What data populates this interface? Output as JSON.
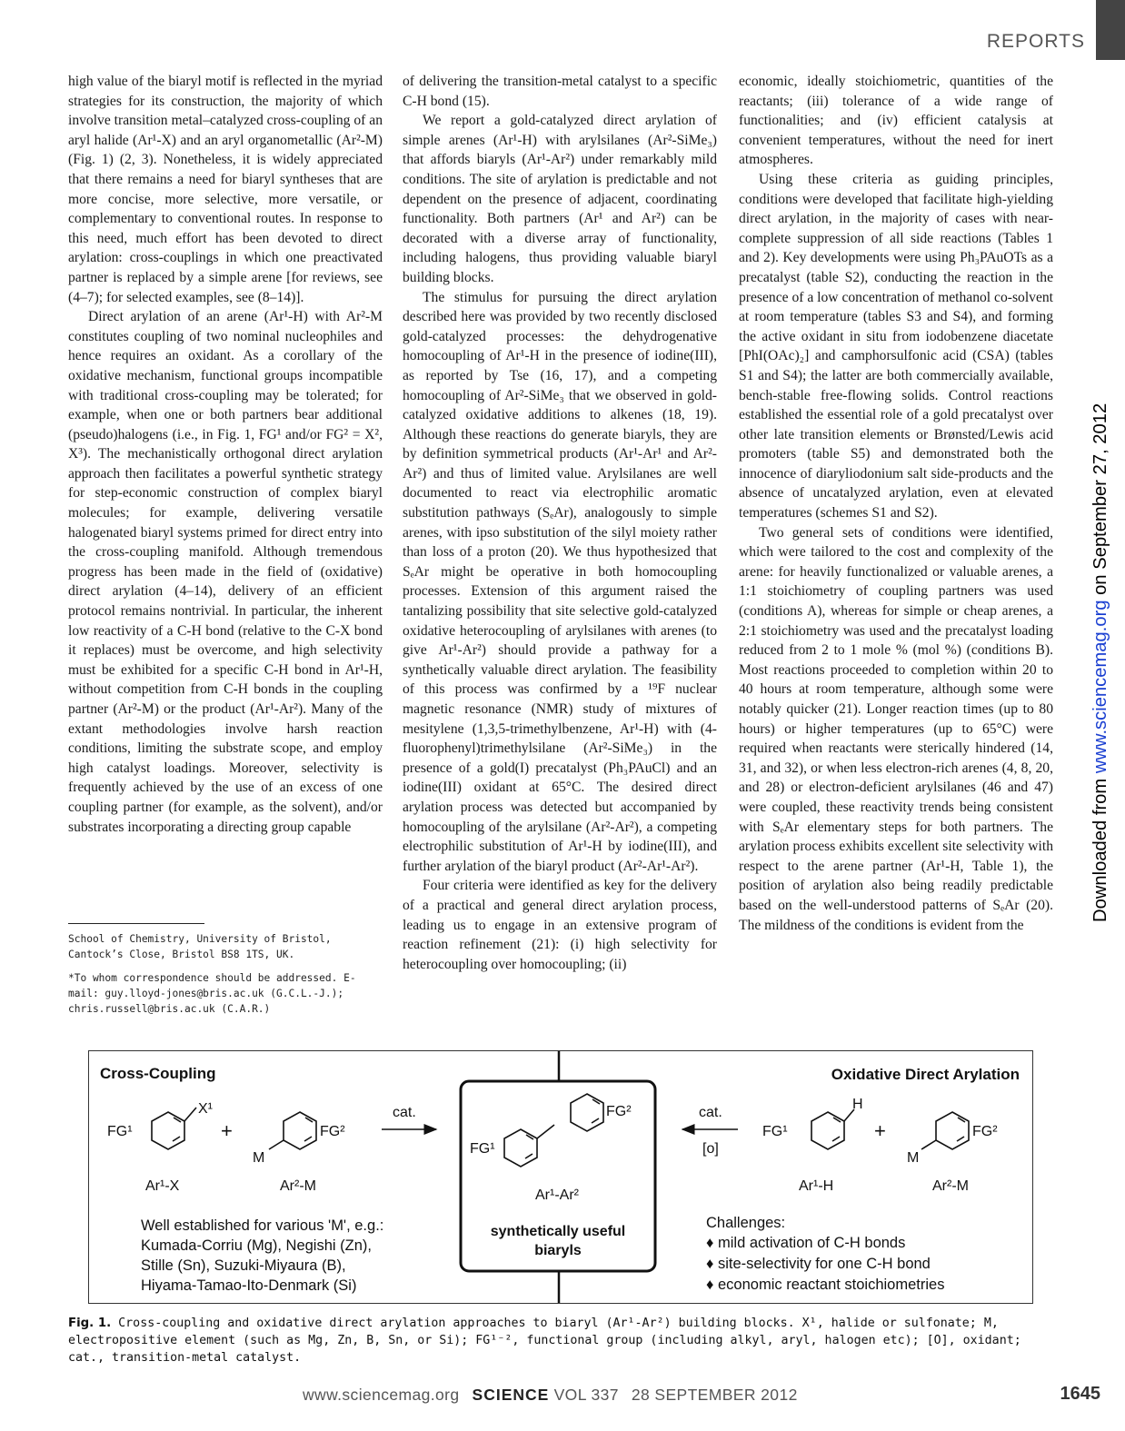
{
  "header": {
    "section": "REPORTS"
  },
  "columns": [
    [
      {
        "indent": false,
        "text": "high value of the biaryl motif is reflected in the myriad strategies for its construction, the majority of which involve transition metal–catalyzed cross-coupling of an aryl halide (Ar¹-X) and an aryl organometallic (Ar²-M) (Fig. 1) (2, 3). Nonetheless, it is widely appreciated that there remains a need for biaryl syntheses that are more concise, more selective, more versatile, or complementary to conventional routes. In response to this need, much effort has been devoted to direct arylation: cross-couplings in which one preactivated partner is replaced by a simple arene [for reviews, see (4–7); for selected examples, see (8–14)]."
      },
      {
        "indent": true,
        "text": "Direct arylation of an arene (Ar¹-H) with Ar²-M constitutes coupling of two nominal nucleophiles and hence requires an oxidant. As a corollary of the oxidative mechanism, functional groups incompatible with traditional cross-coupling may be tolerated; for example, when one or both partners bear additional (pseudo)halogens (i.e., in Fig. 1, FG¹ and/or FG² = X², X³). The mechanistically orthogonal direct arylation approach then facilitates a powerful synthetic strategy for step-economic construction of complex biaryl molecules; for example, delivering versatile halogenated biaryl systems primed for direct entry into the cross-coupling manifold. Although tremendous progress has been made in the field of (oxidative) direct arylation (4–14), delivery of an efficient protocol remains nontrivial. In particular, the inherent low reactivity of a C-H bond (relative to the C-X bond it replaces) must be overcome, and high selectivity must be exhibited for a specific C-H bond in Ar¹-H, without competition from C-H bonds in the coupling partner (Ar²-M) or the product (Ar¹-Ar²). Many of the extant methodologies involve harsh reaction conditions, limiting the substrate scope, and employ high catalyst loadings. Moreover, selectivity is frequently achieved by the use of an excess of one coupling partner (for example, as the solvent), and/or substrates incorporating a directing group capable"
      }
    ],
    [
      {
        "indent": false,
        "text": "of delivering the transition-metal catalyst to a specific C-H bond (15)."
      },
      {
        "indent": true,
        "text": "We report a gold-catalyzed direct arylation of simple arenes (Ar¹-H) with arylsilanes (Ar²-SiMe₃) that affords biaryls (Ar¹-Ar²) under remarkably mild conditions. The site of arylation is predictable and not dependent on the presence of adjacent, coordinating functionality. Both partners (Ar¹ and Ar²) can be decorated with a diverse array of functionality, including halogens, thus providing valuable biaryl building blocks."
      },
      {
        "indent": true,
        "text": "The stimulus for pursuing the direct arylation described here was provided by two recently disclosed gold-catalyzed processes: the dehydrogenative homocoupling of Ar¹-H in the presence of iodine(III), as reported by Tse (16, 17), and a competing homocoupling of Ar²-SiMe₃ that we observed in gold-catalyzed oxidative additions to alkenes (18, 19). Although these reactions do generate biaryls, they are by definition symmetrical products (Ar¹-Ar¹ and Ar²-Ar²) and thus of limited value. Arylsilanes are well documented to react via electrophilic aromatic substitution pathways (SₑAr), analogously to simple arenes, with ipso substitution of the silyl moiety rather than loss of a proton (20). We thus hypothesized that SₑAr might be operative in both homocoupling processes. Extension of this argument raised the tantalizing possibility that site selective gold-catalyzed oxidative heterocoupling of arylsilanes with arenes (to give Ar¹-Ar²) should provide a pathway for a synthetically valuable direct arylation. The feasibility of this process was confirmed by a ¹⁹F nuclear magnetic resonance (NMR) study of mixtures of mesitylene (1,3,5-trimethylbenzene, Ar¹-H) with (4-fluorophenyl)trimethylsilane (Ar²-SiMe₃) in the presence of a gold(I) precatalyst (Ph₃PAuCl) and an iodine(III) oxidant at 65°C. The desired direct arylation process was detected but accompanied by homocoupling of the arylsilane (Ar²-Ar²), a competing electrophilic substitution of Ar¹-H by iodine(III), and further arylation of the biaryl product (Ar²-Ar¹-Ar²)."
      },
      {
        "indent": true,
        "text": "Four criteria were identified as key for the delivery of a practical and general direct arylation process, leading us to engage in an extensive program of reaction refinement (21): (i) high selectivity for heterocoupling over homocoupling; (ii)"
      }
    ],
    [
      {
        "indent": false,
        "text": "economic, ideally stoichiometric, quantities of the reactants; (iii) tolerance of a wide range of functionalities; and (iv) efficient catalysis at convenient temperatures, without the need for inert atmospheres."
      },
      {
        "indent": true,
        "text": "Using these criteria as guiding principles, conditions were developed that facilitate high-yielding direct arylation, in the majority of cases with near-complete suppression of all side reactions (Tables 1 and 2). Key developments were using Ph₃PAuOTs as a precatalyst (table S2), conducting the reaction in the presence of a low concentration of methanol co-solvent at room temperature (tables S3 and S4), and forming the active oxidant in situ from iodobenzene diacetate [PhI(OAc)₂] and camphorsulfonic acid (CSA) (tables S1 and S4); the latter are both commercially available, bench-stable free-flowing solids. Control reactions established the essential role of a gold precatalyst over other late transition elements or Brønsted/Lewis acid promoters (table S5) and demonstrated both the innocence of diaryliodonium salt side-products and the absence of uncatalyzed arylation, even at elevated temperatures (schemes S1 and S2)."
      },
      {
        "indent": true,
        "text": "Two general sets of conditions were identified, which were tailored to the cost and complexity of the arene: for heavily functionalized or valuable arenes, a 1:1 stoichiometry of coupling partners was used (conditions A), whereas for simple or cheap arenes, a 2:1 stoichiometry was used and the precatalyst loading reduced from 2 to 1 mole % (mol %) (conditions B). Most reactions proceeded to completion within 20 to 40 hours at room temperature, although some were notably quicker (21). Longer reaction times (up to 80 hours) or higher temperatures (up to 65°C) were required when reactants were sterically hindered (14, 31, and 32), or when less electron-rich arenes (4, 8, 20, and 28) or electron-deficient arylsilanes (46 and 47) were coupled, these reactivity trends being consistent with SₑAr elementary steps for both partners. The arylation process exhibits excellent site selectivity with respect to the arene partner (Ar¹-H, Table 1), the position of arylation also being readily predictable based on the well-understood patterns of SₑAr (20). The mildness of the conditions is evident from the"
      }
    ]
  ],
  "footnotes": {
    "affiliation": "School of Chemistry, University of Bristol, Cantock’s Close, Bristol BS8 1TS, UK.",
    "correspondence": "*To whom correspondence should be addressed. E-mail: guy.lloyd-jones@bris.ac.uk (G.C.L.-J.); chris.russell@bris.ac.uk (C.A.R.)"
  },
  "side_note": {
    "prefix": "Downloaded from ",
    "link": "www.sciencemag.org",
    "suffix": " on September 27, 2012"
  },
  "figure": {
    "left_title": "Cross-Coupling",
    "right_title": "Oxidative Direct Arylation",
    "left_reactant1": "Ar¹-X",
    "left_reactant2": "Ar²-M",
    "product_label": "Ar¹-Ar²",
    "center_box": [
      "synthetically useful",
      "biaryls"
    ],
    "right_reactant1": "Ar¹-H",
    "right_reactant2": "Ar²-M",
    "left_arrow_label": "cat.",
    "right_arrow_top": "cat.",
    "right_arrow_bottom": "[o]",
    "plus": "+",
    "atoms": {
      "x1": "X¹",
      "fg1": "FG¹",
      "fg2": "FG²",
      "m": "M",
      "h": "H"
    },
    "left_notes": [
      "Well established for various 'M', e.g.:",
      "Kumada-Corriu (Mg), Negishi (Zn),",
      "Stille (Sn), Suzuki-Miyaura (B),",
      "Hiyama-Tamao-Ito-Denmark (Si)"
    ],
    "challenges_title": "Challenges:",
    "challenges": [
      "♦ mild activation of C-H bonds",
      "♦ site-selectivity for one C-H bond",
      "♦ economic reactant stoichiometries"
    ]
  },
  "caption": {
    "label": "Fig. 1.",
    "text": "Cross-coupling and oxidative direct arylation approaches to biaryl (Ar¹-Ar²) building blocks. X¹, halide or sulfonate; M, electropositive element (such as Mg, Zn, B, Sn, or Si); FG¹⁻², functional group (including alkyl, aryl, halogen etc); [O], oxidant; cat., transition-metal catalyst."
  },
  "footer": {
    "url": "www.sciencemag.org",
    "journal": "SCIENCE",
    "volume": "VOL 337",
    "date": "28 SEPTEMBER 2012",
    "page": "1645"
  }
}
